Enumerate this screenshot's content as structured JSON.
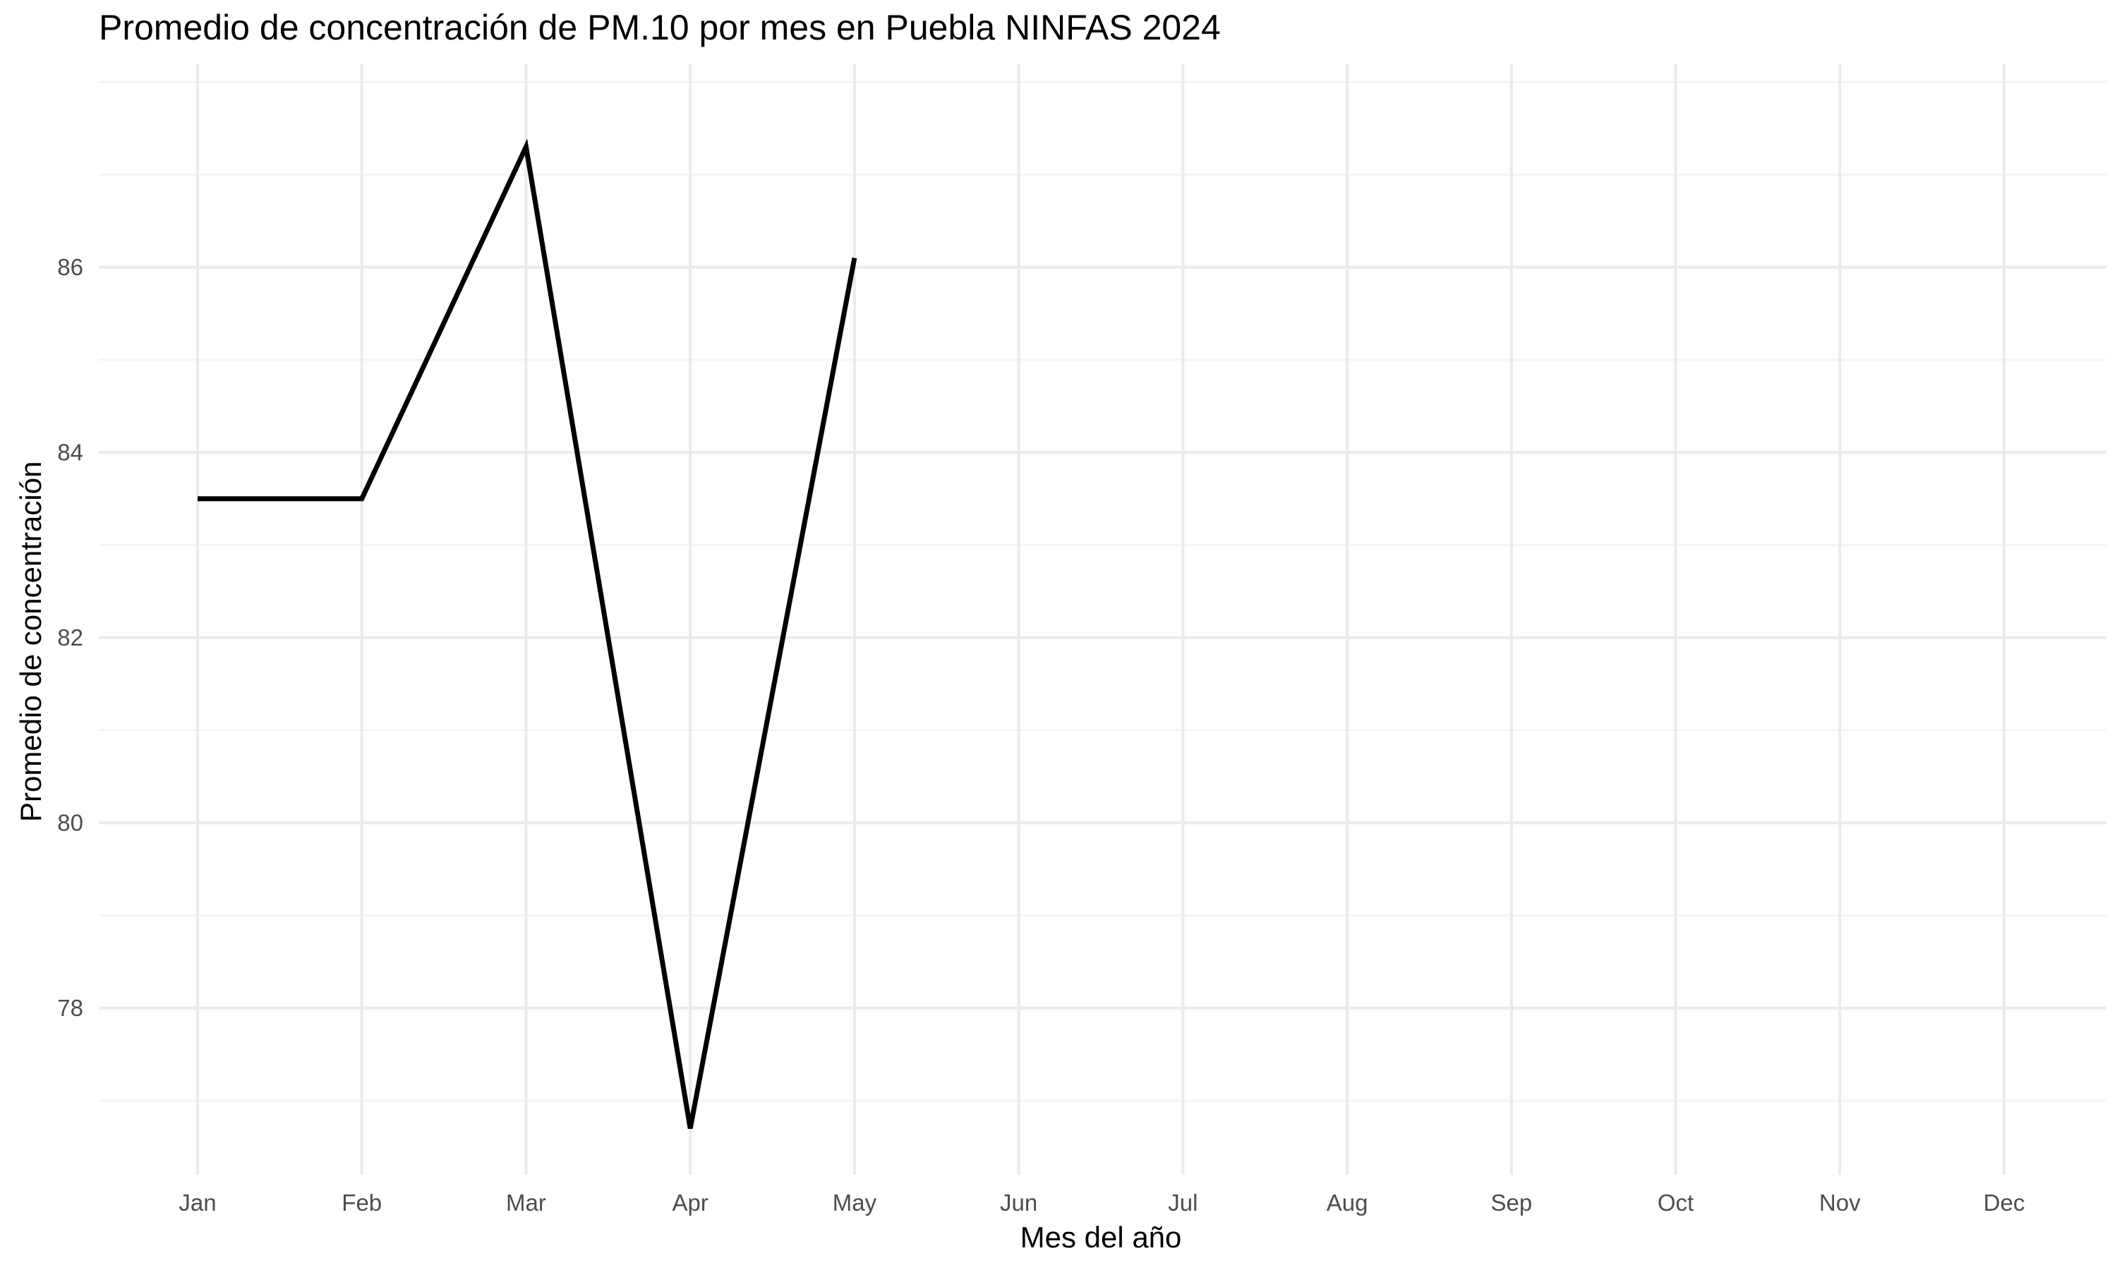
{
  "chart_data": {
    "type": "line",
    "title": "Promedio de concentración de PM.10 por mes en Puebla NINFAS 2024",
    "xlabel": "Mes del año",
    "ylabel": "Promedio de concentración",
    "categories": [
      "Jan",
      "Feb",
      "Mar",
      "Apr",
      "May",
      "Jun",
      "Jul",
      "Aug",
      "Sep",
      "Oct",
      "Nov",
      "Dec"
    ],
    "series": [
      {
        "values": [
          83.5,
          83.5,
          87.3,
          76.7,
          86.1,
          null,
          null,
          null,
          null,
          null,
          null,
          null
        ]
      }
    ],
    "yticks": [
      78,
      80,
      82,
      84,
      86
    ],
    "ylim": [
      76.2,
      88.2
    ],
    "grid": true,
    "colors": {
      "line": "#000000",
      "grid_major": "#ebebeb",
      "grid_minor": "#f3f3f3",
      "tick_text": "#4d4d4d"
    }
  }
}
